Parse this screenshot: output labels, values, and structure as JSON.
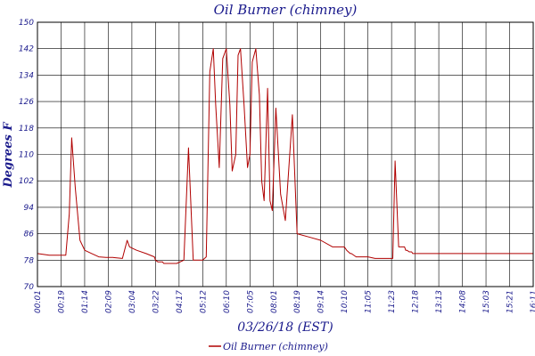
{
  "chart_data": {
    "type": "line",
    "title": "Oil Burner (chimney)",
    "xlabel": "03/26/18 (EST)",
    "ylabel": "Degrees F",
    "ylim": [
      70,
      150
    ],
    "yticks": [
      70,
      78,
      86,
      94,
      102,
      110,
      118,
      126,
      134,
      142,
      150
    ],
    "xticks": [
      "00:01",
      "00:19",
      "01:14",
      "02:09",
      "03:04",
      "03:22",
      "04:17",
      "05:12",
      "06:10",
      "07:05",
      "08:01",
      "08:19",
      "09:14",
      "10:10",
      "11:05",
      "11:23",
      "12:18",
      "13:13",
      "14:08",
      "15:03",
      "15:21",
      "16:11"
    ],
    "grid": true,
    "legend_position": "bottom",
    "series": [
      {
        "name": "Oil Burner (chimney)",
        "color": "#b00000",
        "x": [
          0,
          0.5,
          1.2,
          1.35,
          1.45,
          1.6,
          1.8,
          2.0,
          2.3,
          2.6,
          2.9,
          3.2,
          3.6,
          3.8,
          3.85,
          3.9,
          4.2,
          4.6,
          4.95,
          5.0,
          5.1,
          5.3,
          5.35,
          5.4,
          5.6,
          5.9,
          6.2,
          6.4,
          6.6,
          6.85,
          7.0,
          7.15,
          7.3,
          7.45,
          7.55,
          7.7,
          7.85,
          8.0,
          8.15,
          8.25,
          8.4,
          8.5,
          8.6,
          8.75,
          8.9,
          9.0,
          9.1,
          9.25,
          9.4,
          9.5,
          9.6,
          9.75,
          9.85,
          9.95,
          10.1,
          10.3,
          10.5,
          10.8,
          11.0,
          11.5,
          12.0,
          12.5,
          13.0,
          13.1,
          13.25,
          13.3,
          13.5,
          14.0,
          14.3,
          14.95,
          15.05,
          15.15,
          15.3,
          15.45,
          15.55,
          15.6,
          15.65,
          15.75,
          15.8,
          15.85,
          15.9,
          15.95,
          16.0,
          16.05,
          16.1,
          16.2,
          16.4,
          16.5,
          16.8,
          16.9,
          17.0,
          17.3,
          17.6,
          17.95,
          18.0,
          18.1,
          18.3,
          18.6,
          19.0,
          19.4,
          19.9,
          20.0,
          20.1,
          20.25,
          20.35,
          20.45,
          20.55,
          20.7,
          21.0
        ],
        "y": [
          80,
          79.5,
          79.5,
          92,
          115,
          100,
          84,
          81,
          80,
          79,
          78.8,
          78.8,
          78.5,
          84,
          83,
          82,
          81,
          80,
          79,
          78,
          77.5,
          77.5,
          77,
          77,
          77,
          77,
          78,
          112,
          78,
          78,
          78,
          79,
          135,
          142,
          125,
          106,
          139,
          142,
          125,
          105,
          110,
          140,
          142,
          125,
          106,
          110,
          138,
          142,
          128,
          102,
          96,
          130,
          96,
          93,
          124,
          98,
          90,
          122,
          86,
          85,
          84,
          82,
          82,
          81,
          80,
          80,
          79,
          79,
          78.5,
          78.5,
          78.5,
          108,
          82,
          82,
          82,
          81,
          81,
          80.5,
          80.5,
          80.5,
          80,
          80,
          80,
          80,
          80,
          80,
          80,
          80,
          80,
          80,
          80,
          80,
          80,
          80,
          80,
          80,
          80,
          80,
          80,
          80,
          80,
          80,
          80,
          80,
          80,
          80,
          80,
          80,
          80
        ],
        "raw_note": ""
      }
    ],
    "legend": [
      "Oil Burner (chimney)"
    ]
  }
}
